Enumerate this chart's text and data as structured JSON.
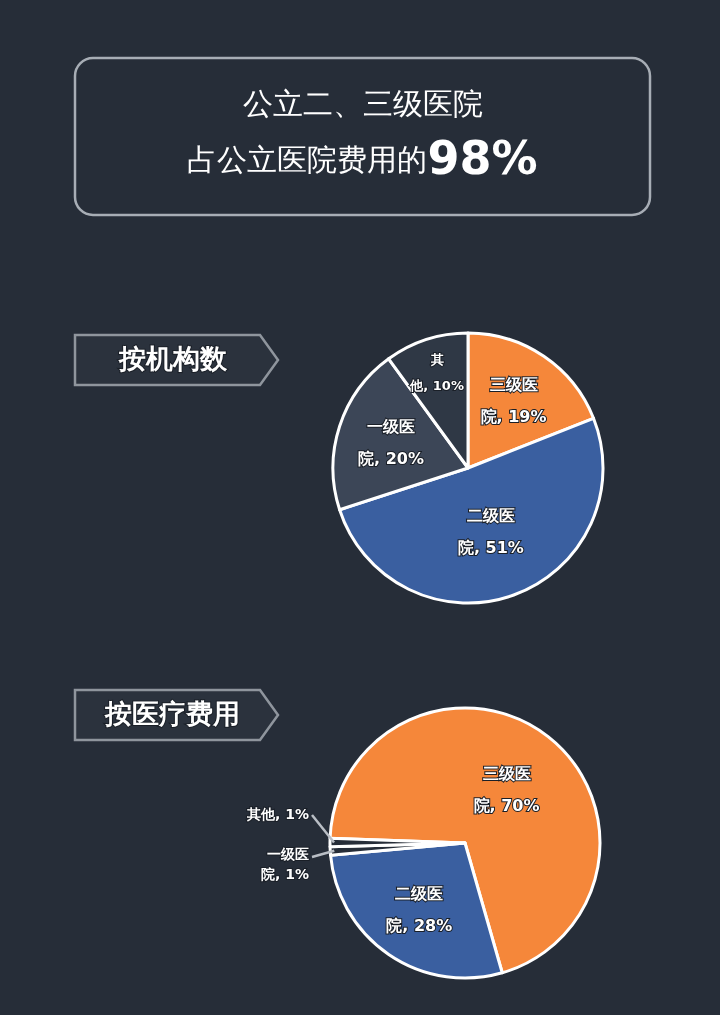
{
  "chart_data": [
    {
      "type": "other",
      "title": "公立二、三级医院",
      "subtitle": "占公立医院费用的98%"
    },
    {
      "type": "pie",
      "title": "按机构数",
      "categories": [
        "三级医院",
        "二级医院",
        "一级医院",
        "其他"
      ],
      "values": [
        19,
        51,
        20,
        10
      ],
      "value_labels": [
        "19%",
        "51%",
        "20%",
        "10%"
      ],
      "colors": [
        "#f5873a",
        "#3a5fa0",
        "#3c4657",
        "#2f3845"
      ]
    },
    {
      "type": "pie",
      "title": "按医疗费用",
      "categories": [
        "三级医院",
        "二级医院",
        "一级医院",
        "其他"
      ],
      "values": [
        70,
        28,
        1,
        1
      ],
      "value_labels": [
        "70%",
        "28%",
        "1%",
        "1%"
      ],
      "colors": [
        "#f5873a",
        "#3a5fa0",
        "#262d38",
        "#262d38"
      ]
    }
  ]
}
